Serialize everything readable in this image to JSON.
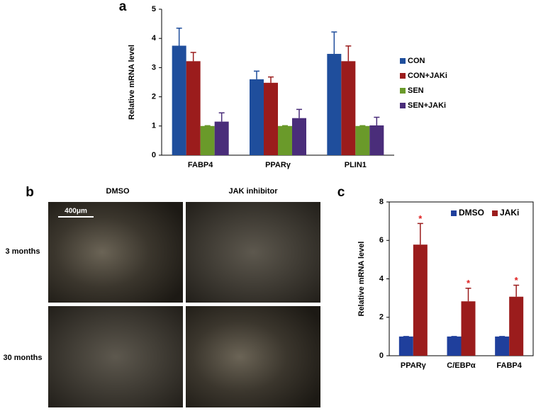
{
  "chart_data": [
    {
      "type": "bar",
      "panel": "a",
      "y_label": "Relative mRNA level",
      "categories": [
        "FABP4",
        "PPARγ",
        "PLIN1"
      ],
      "series": [
        {
          "name": "CON",
          "color": "#1f4e9c",
          "values": [
            3.75,
            2.6,
            3.47
          ],
          "errors": [
            0.6,
            0.28,
            0.75
          ]
        },
        {
          "name": "CON+JAKi",
          "color": "#9b1c1c",
          "values": [
            3.22,
            2.48,
            3.22
          ],
          "errors": [
            0.3,
            0.2,
            0.52
          ]
        },
        {
          "name": "SEN",
          "color": "#6a9a2a",
          "values": [
            1,
            1,
            1
          ],
          "errors": [
            0.01,
            0.01,
            0.01
          ]
        },
        {
          "name": "SEN+JAKi",
          "color": "#4a2d7a",
          "values": [
            1.15,
            1.27,
            1.02
          ],
          "errors": [
            0.3,
            0.3,
            0.28
          ]
        }
      ],
      "ylim": [
        0,
        5
      ],
      "yticks": [
        0,
        1,
        2,
        3,
        4,
        5
      ],
      "legend": "right"
    },
    {
      "type": "bar",
      "panel": "c",
      "y_label": "Relative mRNA level",
      "categories": [
        "PPARγ",
        "C/EBPα",
        "FABP4"
      ],
      "series": [
        {
          "name": "DMSO",
          "color": "#1f3f9c",
          "values": [
            1,
            1,
            1
          ],
          "errors": [
            0,
            0,
            0
          ]
        },
        {
          "name": "JAKi",
          "color": "#9b1c1c",
          "values": [
            5.78,
            2.83,
            3.07
          ],
          "errors": [
            1.1,
            0.68,
            0.6
          ],
          "annotations": [
            "*",
            "*",
            "*"
          ]
        }
      ],
      "ylim": [
        0,
        8
      ],
      "yticks": [
        0,
        2,
        4,
        6,
        8
      ],
      "legend": "top-right"
    }
  ],
  "micrographs": {
    "panel": "b",
    "columns": [
      "DMSO",
      "JAK inhibitor"
    ],
    "rows": [
      "3 months",
      "30 months"
    ],
    "scale_bar": "400μm"
  }
}
